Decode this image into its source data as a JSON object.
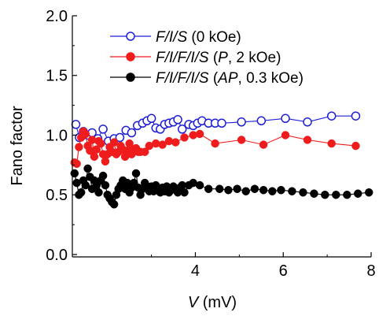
{
  "chart_data": {
    "type": "scatter",
    "xlabel_italic": "V",
    "xlabel_unit": " (mV)",
    "ylabel": "Fano factor",
    "xlim": [
      1.2,
      8.0
    ],
    "ylim": [
      -0.02,
      2.0
    ],
    "x_ticks": [
      {
        "value": 4,
        "label": "4"
      },
      {
        "value": 6,
        "label": "6"
      },
      {
        "value": 8,
        "label": "8"
      }
    ],
    "y_ticks": [
      {
        "value": 0.0,
        "label": "0.0"
      },
      {
        "value": 0.5,
        "label": "0.5"
      },
      {
        "value": 1.0,
        "label": "1.0"
      },
      {
        "value": 1.5,
        "label": "1.5"
      },
      {
        "value": 2.0,
        "label": "2.0"
      }
    ],
    "legend_position": "top-center",
    "series": [
      {
        "legend_italic": "F/I/S",
        "legend_rest": " (0 kOe)",
        "color": "#1f1fd6",
        "marker": "open-circle",
        "points": [
          [
            1.28,
            1.09
          ],
          [
            1.36,
            0.98
          ],
          [
            1.45,
            1.03
          ],
          [
            1.55,
            1.0
          ],
          [
            1.65,
            1.02
          ],
          [
            1.78,
            0.97
          ],
          [
            1.9,
            1.05
          ],
          [
            2.02,
            0.95
          ],
          [
            2.15,
            0.97
          ],
          [
            2.28,
            0.98
          ],
          [
            2.42,
            1.04
          ],
          [
            2.55,
            1.02
          ],
          [
            2.68,
            1.08
          ],
          [
            2.8,
            1.1
          ],
          [
            2.9,
            1.12
          ],
          [
            3.0,
            1.14
          ],
          [
            3.1,
            1.06
          ],
          [
            3.2,
            1.05
          ],
          [
            3.3,
            1.09
          ],
          [
            3.4,
            1.1
          ],
          [
            3.5,
            1.11
          ],
          [
            3.6,
            1.13
          ],
          [
            3.7,
            1.05
          ],
          [
            3.85,
            1.09
          ],
          [
            3.95,
            1.08
          ],
          [
            4.05,
            1.1
          ],
          [
            4.15,
            1.12
          ],
          [
            4.3,
            1.1
          ],
          [
            4.45,
            1.1
          ],
          [
            4.6,
            1.1
          ],
          [
            5.05,
            1.11
          ],
          [
            5.5,
            1.12
          ],
          [
            6.05,
            1.14
          ],
          [
            6.55,
            1.11
          ],
          [
            7.1,
            1.16
          ],
          [
            7.65,
            1.16
          ]
        ]
      },
      {
        "legend_italic": "F/I/F/I/S",
        "legend_open": " (",
        "legend_italic2": "P",
        "legend_close": ", 2 kOe)",
        "color": "#ee1c1c",
        "marker": "filled-circle",
        "points": [
          [
            1.25,
            0.77
          ],
          [
            1.3,
            0.76
          ],
          [
            1.35,
            0.9
          ],
          [
            1.4,
            0.98
          ],
          [
            1.45,
            1.03
          ],
          [
            1.5,
            1.01
          ],
          [
            1.55,
            0.91
          ],
          [
            1.6,
            0.87
          ],
          [
            1.65,
            0.96
          ],
          [
            1.7,
            0.82
          ],
          [
            1.75,
            0.88
          ],
          [
            1.8,
            0.95
          ],
          [
            1.85,
            0.93
          ],
          [
            1.9,
            0.84
          ],
          [
            1.95,
            0.78
          ],
          [
            2.0,
            0.84
          ],
          [
            2.05,
            0.9
          ],
          [
            2.1,
            0.86
          ],
          [
            2.15,
            0.94
          ],
          [
            2.2,
            0.84
          ],
          [
            2.25,
            0.86
          ],
          [
            2.3,
            0.91
          ],
          [
            2.35,
            0.88
          ],
          [
            2.4,
            0.82
          ],
          [
            2.45,
            0.87
          ],
          [
            2.5,
            0.93
          ],
          [
            2.55,
            0.84
          ],
          [
            2.6,
            0.88
          ],
          [
            2.65,
            0.89
          ],
          [
            2.7,
            0.86
          ],
          [
            2.75,
            0.86
          ],
          [
            2.85,
            0.86
          ],
          [
            2.95,
            0.91
          ],
          [
            3.1,
            0.93
          ],
          [
            3.25,
            0.92
          ],
          [
            3.4,
            0.95
          ],
          [
            3.55,
            0.94
          ],
          [
            3.75,
            0.98
          ],
          [
            3.95,
            1.0
          ],
          [
            4.1,
            1.01
          ],
          [
            4.45,
            0.93
          ],
          [
            5.05,
            0.96
          ],
          [
            5.55,
            0.92
          ],
          [
            6.05,
            1.0
          ],
          [
            6.55,
            0.96
          ],
          [
            7.1,
            0.93
          ],
          [
            7.65,
            0.91
          ]
        ]
      },
      {
        "legend_italic": "F/I/F/I/S",
        "legend_open": " (",
        "legend_italic2": "AP",
        "legend_close": ", 0.3 kOe)",
        "color": "#000000",
        "marker": "filled-circle",
        "points": [
          [
            1.25,
            0.68
          ],
          [
            1.3,
            0.6
          ],
          [
            1.35,
            0.5
          ],
          [
            1.4,
            0.52
          ],
          [
            1.45,
            0.62
          ],
          [
            1.5,
            0.58
          ],
          [
            1.55,
            0.72
          ],
          [
            1.6,
            0.65
          ],
          [
            1.65,
            0.55
          ],
          [
            1.7,
            0.62
          ],
          [
            1.75,
            0.58
          ],
          [
            1.8,
            0.52
          ],
          [
            1.85,
            0.62
          ],
          [
            1.9,
            0.66
          ],
          [
            1.95,
            0.58
          ],
          [
            2.0,
            0.5
          ],
          [
            2.05,
            0.47
          ],
          [
            2.1,
            0.44
          ],
          [
            2.15,
            0.42
          ],
          [
            2.2,
            0.5
          ],
          [
            2.25,
            0.55
          ],
          [
            2.3,
            0.58
          ],
          [
            2.35,
            0.62
          ],
          [
            2.4,
            0.55
          ],
          [
            2.45,
            0.6
          ],
          [
            2.5,
            0.52
          ],
          [
            2.55,
            0.56
          ],
          [
            2.6,
            0.6
          ],
          [
            2.65,
            0.68
          ],
          [
            2.7,
            0.56
          ],
          [
            2.75,
            0.5
          ],
          [
            2.8,
            0.55
          ],
          [
            2.85,
            0.6
          ],
          [
            2.9,
            0.57
          ],
          [
            2.95,
            0.53
          ],
          [
            3.0,
            0.57
          ],
          [
            3.05,
            0.53
          ],
          [
            3.1,
            0.58
          ],
          [
            3.15,
            0.55
          ],
          [
            3.2,
            0.52
          ],
          [
            3.25,
            0.56
          ],
          [
            3.3,
            0.53
          ],
          [
            3.35,
            0.57
          ],
          [
            3.4,
            0.52
          ],
          [
            3.45,
            0.55
          ],
          [
            3.5,
            0.57
          ],
          [
            3.55,
            0.54
          ],
          [
            3.6,
            0.52
          ],
          [
            3.65,
            0.56
          ],
          [
            3.7,
            0.58
          ],
          [
            3.75,
            0.52
          ],
          [
            3.85,
            0.58
          ],
          [
            3.95,
            0.6
          ],
          [
            4.1,
            0.58
          ],
          [
            4.3,
            0.55
          ],
          [
            4.55,
            0.55
          ],
          [
            4.75,
            0.54
          ],
          [
            4.95,
            0.55
          ],
          [
            5.15,
            0.53
          ],
          [
            5.35,
            0.55
          ],
          [
            5.55,
            0.54
          ],
          [
            5.75,
            0.53
          ],
          [
            5.95,
            0.54
          ],
          [
            6.2,
            0.53
          ],
          [
            6.45,
            0.52
          ],
          [
            6.7,
            0.51
          ],
          [
            6.95,
            0.5
          ],
          [
            7.2,
            0.5
          ],
          [
            7.45,
            0.5
          ],
          [
            7.7,
            0.51
          ],
          [
            7.95,
            0.52
          ]
        ]
      }
    ]
  }
}
